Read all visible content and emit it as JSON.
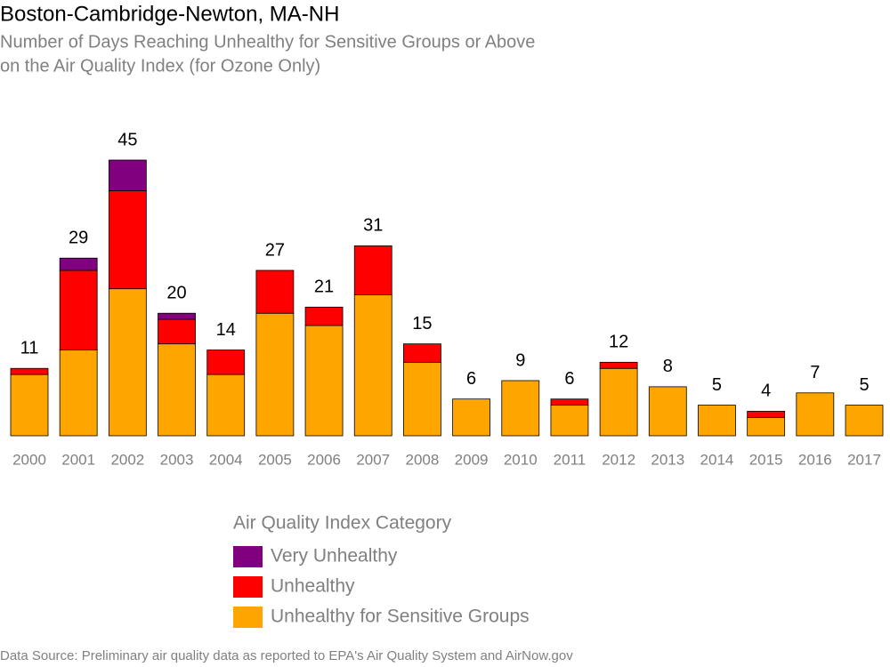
{
  "chart_data": {
    "type": "stacked-bar",
    "title": "Boston-Cambridge-Newton, MA-NH",
    "subtitle": [
      "Number of Days Reaching Unhealthy for Sensitive Groups or Above",
      "on the Air Quality Index (for Ozone Only)"
    ],
    "categories": [
      "2000",
      "2001",
      "2002",
      "2003",
      "2004",
      "2005",
      "2006",
      "2007",
      "2008",
      "2009",
      "2010",
      "2011",
      "2012",
      "2013",
      "2014",
      "2015",
      "2016",
      "2017"
    ],
    "series": [
      {
        "name": "Very Unhealthy",
        "color": "#800080",
        "values": [
          0,
          2,
          5,
          1,
          0,
          0,
          0,
          0,
          0,
          0,
          0,
          0,
          0,
          0,
          0,
          0,
          0,
          0
        ]
      },
      {
        "name": "Unhealthy",
        "color": "#ff0000",
        "values": [
          1,
          13,
          16,
          4,
          4,
          7,
          3,
          8,
          3,
          0,
          0,
          1,
          1,
          0,
          0,
          1,
          0,
          0
        ]
      },
      {
        "name": "Unhealthy for Sensitive Groups",
        "color": "#ffa500",
        "values": [
          10,
          14,
          24,
          15,
          10,
          20,
          18,
          23,
          12,
          6,
          9,
          5,
          11,
          8,
          5,
          3,
          7,
          5
        ]
      }
    ],
    "totals": [
      11,
      29,
      45,
      20,
      14,
      27,
      21,
      31,
      15,
      6,
      9,
      6,
      12,
      8,
      5,
      4,
      7,
      5
    ],
    "legend_title": "Air Quality Index Category",
    "source": "Data Source: Preliminary air quality data as reported to EPA's Air Quality System and AirNow.gov"
  }
}
